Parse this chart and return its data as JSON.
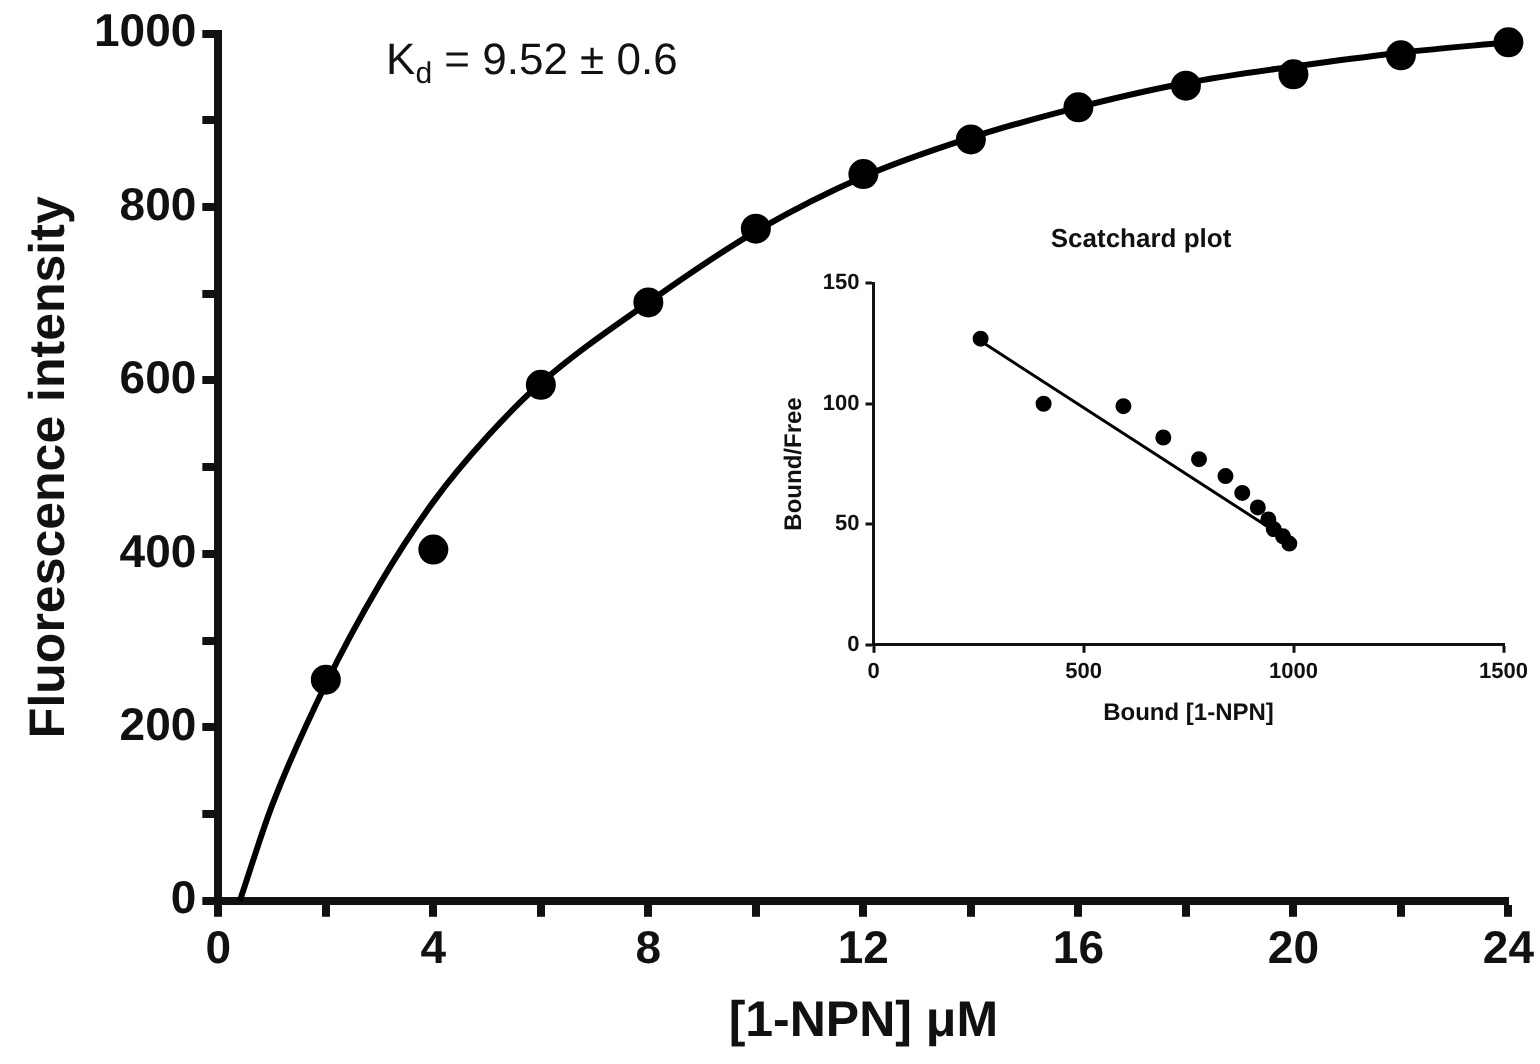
{
  "chart_data": [
    {
      "type": "scatter",
      "xlabel": "[1-NPN] μM",
      "ylabel": "Fluorescence intensity",
      "annotations": [
        "K$_{d}$ = 9.52 ± 0.6"
      ],
      "xlim": [
        0,
        24
      ],
      "xticks": [
        0,
        {
          "value": 2,
          "label": null
        },
        4,
        {
          "value": 6,
          "label": null
        },
        8,
        {
          "value": 10,
          "label": null
        },
        12,
        {
          "value": 14,
          "label": null
        },
        16,
        {
          "value": 18,
          "label": null
        },
        20,
        {
          "value": 22,
          "label": null
        },
        24
      ],
      "ylim": [
        0,
        1000
      ],
      "yticks": [
        0,
        {
          "value": 100,
          "label": null
        },
        200,
        {
          "value": 300,
          "label": null
        },
        400,
        {
          "value": 500,
          "label": null
        },
        600,
        {
          "value": 700,
          "label": null
        },
        800,
        {
          "value": 900,
          "label": null
        },
        1000
      ],
      "grid": false,
      "legend": false,
      "series": [
        {
          "marker": "circle",
          "color": "#000000",
          "x": [
            2,
            4,
            6,
            8,
            10,
            12,
            14,
            16,
            18,
            20,
            22,
            24
          ],
          "values": [
            255,
            405,
            595,
            690,
            775,
            838,
            878,
            915,
            940,
            953,
            975,
            990
          ]
        },
        {
          "type": "line",
          "marker": "none",
          "color": "#000000",
          "x": [
            0.4,
            1,
            2,
            3,
            4,
            5,
            6,
            8,
            10,
            12,
            14,
            16,
            18,
            20,
            22,
            24
          ],
          "values": [
            0,
            110,
            250,
            365,
            460,
            535,
            597,
            690,
            772,
            835,
            880,
            915,
            943,
            962,
            978,
            990
          ]
        }
      ]
    },
    {
      "type": "scatter",
      "title": "Scatchard plot",
      "xlabel": "Bound [1-NPN]",
      "ylabel": "Bound/Free",
      "xlim": [
        0,
        1500
      ],
      "xticks": [
        0,
        500,
        1000,
        1500
      ],
      "ylim": [
        0,
        150
      ],
      "yticks": [
        0,
        50,
        100,
        150
      ],
      "grid": false,
      "legend": false,
      "series": [
        {
          "marker": "circle",
          "color": "#000000",
          "x": [
            255,
            405,
            595,
            690,
            775,
            838,
            878,
            915,
            940,
            953,
            975,
            990
          ],
          "values": [
            127,
            100,
            99,
            86,
            77,
            70,
            63,
            57,
            52,
            48,
            45,
            42
          ]
        },
        {
          "type": "line",
          "marker": "none",
          "color": "#000000",
          "x": [
            255,
            965
          ],
          "values": [
            126,
            46
          ]
        }
      ]
    }
  ]
}
